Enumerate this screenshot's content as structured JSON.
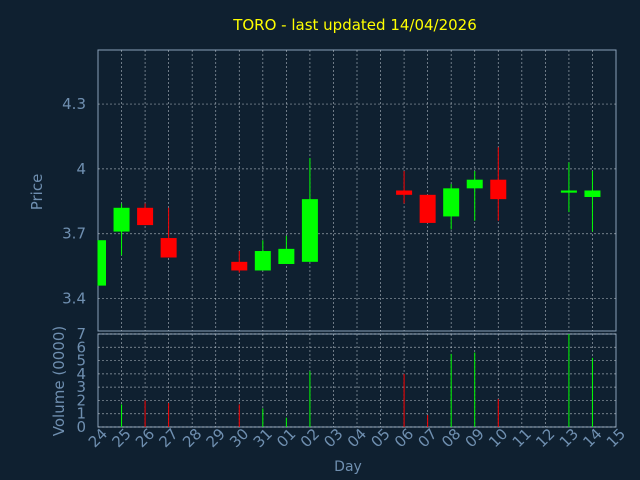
{
  "chart_data": {
    "type": "candlestick",
    "title": "TORO - last updated 14/04/2026",
    "price_axis": {
      "label": "Price",
      "ylim": [
        3.25,
        4.55
      ],
      "ticks": [
        3.4,
        3.7,
        4.0,
        4.3
      ],
      "tick_labels": [
        "3.4",
        "3.7",
        "4",
        "4.3"
      ]
    },
    "volume_axis": {
      "label": "Volume (0000)",
      "ylim": [
        0,
        7
      ],
      "ticks": [
        0,
        1,
        2,
        3,
        4,
        5,
        6,
        7
      ],
      "tick_labels": [
        "0",
        "1",
        "2",
        "3",
        "4",
        "5",
        "6",
        "7"
      ]
    },
    "x_axis": {
      "label": "Day",
      "tick_labels": [
        "24",
        "25",
        "26",
        "27",
        "28",
        "29",
        "30",
        "31",
        "01",
        "02",
        "03",
        "04",
        "05",
        "06",
        "07",
        "08",
        "09",
        "10",
        "11",
        "12",
        "13",
        "14",
        "15"
      ]
    },
    "grid": true,
    "colors": {
      "background": "#0f2030",
      "up": "#00ff00",
      "down": "#ff0000",
      "title": "#ffff00",
      "axis_text": "#6f8fb0",
      "grid": "#d0d8e0"
    },
    "candles": [
      {
        "day": "24",
        "open": 3.46,
        "close": 3.67,
        "high": 3.67,
        "low": 3.46,
        "volume": 0.0
      },
      {
        "day": "25",
        "open": 3.71,
        "close": 3.82,
        "high": 3.84,
        "low": 3.6,
        "volume": 1.7
      },
      {
        "day": "26",
        "open": 3.82,
        "close": 3.74,
        "high": 3.84,
        "low": 3.74,
        "volume": 2.0
      },
      {
        "day": "27",
        "open": 3.68,
        "close": 3.59,
        "high": 3.82,
        "low": 3.59,
        "volume": 1.8
      },
      {
        "day": "30",
        "open": 3.57,
        "close": 3.53,
        "high": 3.62,
        "low": 3.52,
        "volume": 1.7
      },
      {
        "day": "31",
        "open": 3.53,
        "close": 3.62,
        "high": 3.67,
        "low": 3.53,
        "volume": 1.4
      },
      {
        "day": "01",
        "open": 3.56,
        "close": 3.63,
        "high": 3.69,
        "low": 3.56,
        "volume": 0.7
      },
      {
        "day": "02",
        "open": 3.57,
        "close": 3.86,
        "high": 4.05,
        "low": 3.57,
        "volume": 4.2
      },
      {
        "day": "06",
        "open": 3.9,
        "close": 3.88,
        "high": 3.99,
        "low": 3.84,
        "volume": 4.0
      },
      {
        "day": "07",
        "open": 3.88,
        "close": 3.75,
        "high": 3.88,
        "low": 3.75,
        "volume": 0.9
      },
      {
        "day": "08",
        "open": 3.78,
        "close": 3.91,
        "high": 3.93,
        "low": 3.72,
        "volume": 5.5
      },
      {
        "day": "09",
        "open": 3.91,
        "close": 3.95,
        "high": 3.99,
        "low": 3.76,
        "volume": 5.6
      },
      {
        "day": "10",
        "open": 3.95,
        "close": 3.86,
        "high": 4.1,
        "low": 3.76,
        "volume": 2.1
      },
      {
        "day": "13",
        "open": 3.89,
        "close": 3.9,
        "high": 4.03,
        "low": 3.8,
        "volume": 7.0
      },
      {
        "day": "14",
        "open": 3.87,
        "close": 3.9,
        "high": 3.99,
        "low": 3.71,
        "volume": 5.2
      }
    ]
  }
}
